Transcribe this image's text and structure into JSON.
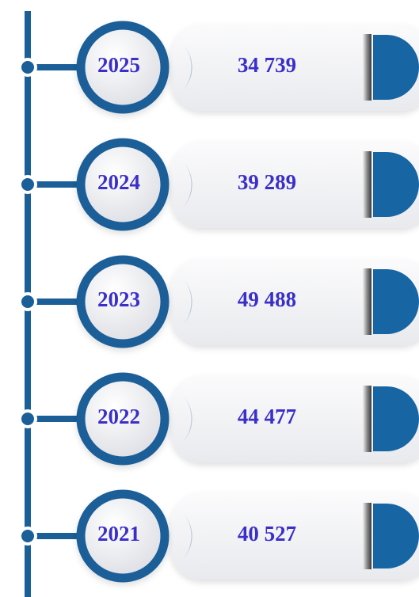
{
  "items": [
    {
      "year": "2025",
      "value": "34 739"
    },
    {
      "year": "2024",
      "value": "39 289"
    },
    {
      "year": "2023",
      "value": "49 488"
    },
    {
      "year": "2022",
      "value": "44 477"
    },
    {
      "year": "2021",
      "value": "40 527"
    }
  ]
}
